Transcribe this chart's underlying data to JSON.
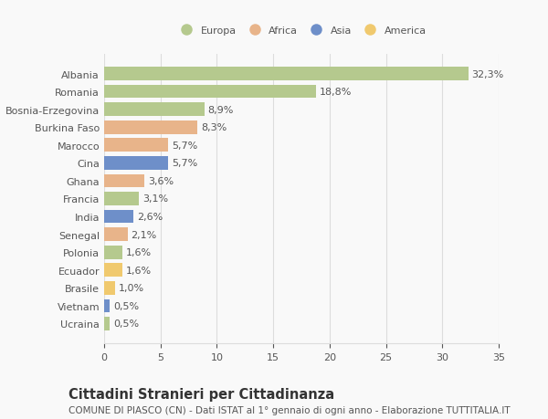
{
  "countries": [
    "Albania",
    "Romania",
    "Bosnia-Erzegovina",
    "Burkina Faso",
    "Marocco",
    "Cina",
    "Ghana",
    "Francia",
    "India",
    "Senegal",
    "Polonia",
    "Ecuador",
    "Brasile",
    "Vietnam",
    "Ucraina"
  ],
  "values": [
    32.3,
    18.8,
    8.9,
    8.3,
    5.7,
    5.7,
    3.6,
    3.1,
    2.6,
    2.1,
    1.6,
    1.6,
    1.0,
    0.5,
    0.5
  ],
  "labels": [
    "32,3%",
    "18,8%",
    "8,9%",
    "8,3%",
    "5,7%",
    "5,7%",
    "3,6%",
    "3,1%",
    "2,6%",
    "2,1%",
    "1,6%",
    "1,6%",
    "1,0%",
    "0,5%",
    "0,5%"
  ],
  "continents": [
    "Europa",
    "Europa",
    "Europa",
    "Africa",
    "Africa",
    "Asia",
    "Africa",
    "Europa",
    "Asia",
    "Africa",
    "Europa",
    "America",
    "America",
    "Asia",
    "Europa"
  ],
  "continent_colors": {
    "Europa": "#b5c98e",
    "Africa": "#e8b48a",
    "Asia": "#6e8fc9",
    "America": "#f0c96e"
  },
  "legend_order": [
    "Europa",
    "Africa",
    "Asia",
    "America"
  ],
  "title": "Cittadini Stranieri per Cittadinanza",
  "subtitle": "COMUNE DI PIASCO (CN) - Dati ISTAT al 1° gennaio di ogni anno - Elaborazione TUTTITALIA.IT",
  "xlim": [
    0,
    35
  ],
  "xticks": [
    0,
    5,
    10,
    15,
    20,
    25,
    30,
    35
  ],
  "background_color": "#f9f9f9",
  "bar_height": 0.75,
  "grid_color": "#dddddd",
  "text_color": "#555555",
  "label_fontsize": 8,
  "tick_fontsize": 8,
  "title_fontsize": 10.5,
  "subtitle_fontsize": 7.5
}
